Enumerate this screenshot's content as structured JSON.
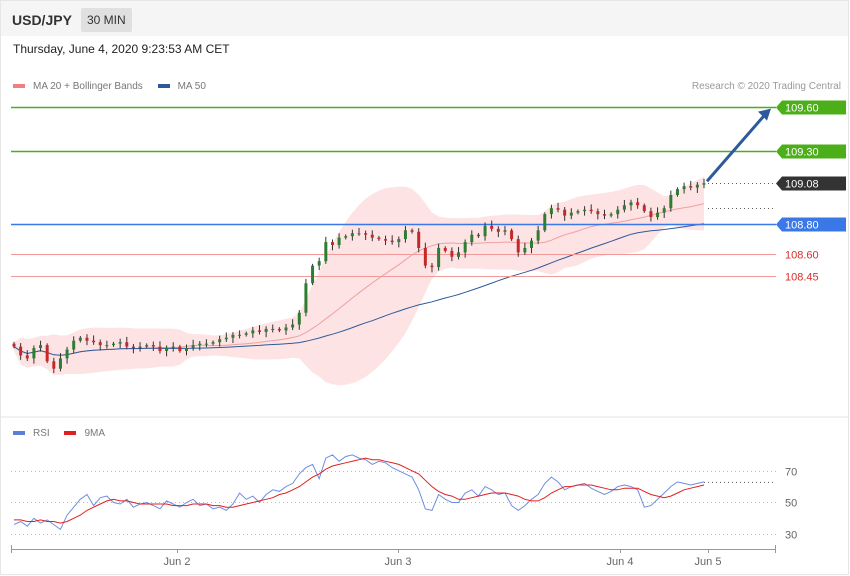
{
  "header": {
    "pair": "USD/JPY",
    "timeframe": "30 MIN",
    "datetime": "Thursday, June 4, 2020 9:23:53 AM CET",
    "credit": "Research © 2020 Trading Central"
  },
  "legend_main": [
    {
      "label": "MA 20 + Bollinger Bands",
      "color": "#f08080"
    },
    {
      "label": "MA 50",
      "color": "#2e5a9c"
    }
  ],
  "legend_rsi": [
    {
      "label": "RSI",
      "color": "#5b7fd6"
    },
    {
      "label": "9MA",
      "color": "#e02020"
    }
  ],
  "colors": {
    "up": "#2e7d32",
    "down": "#c62828",
    "resistance": "#4caf1a",
    "pivot": "#3b78e7",
    "support": "#f29a9a",
    "support_text": "#d9302b",
    "current": "#333333",
    "band_fill": "#fde0e0",
    "ma20": "#f0a0a0",
    "ma50": "#2e5a9c",
    "arrow": "#2e5a9c"
  },
  "chart_data": [
    {
      "type": "candlestick",
      "title": "USD/JPY",
      "xlabel": "",
      "ylabel": "",
      "x_ticks": [
        "Jun 2",
        "Jun 3",
        "Jun 4",
        "Jun 5"
      ],
      "ylim": [
        107.58,
        109.72
      ],
      "levels": [
        {
          "label": "109.60",
          "value": 109.6,
          "kind": "resistance"
        },
        {
          "label": "109.30",
          "value": 109.3,
          "kind": "resistance"
        },
        {
          "label": "109.08",
          "value": 109.08,
          "kind": "current"
        },
        {
          "label": "108.80",
          "value": 108.8,
          "kind": "pivot"
        },
        {
          "label": "108.60",
          "value": 108.6,
          "kind": "support"
        },
        {
          "label": "108.45",
          "value": 108.45,
          "kind": "support"
        }
      ],
      "close": [
        107.97,
        107.91,
        107.89,
        107.96,
        107.98,
        107.87,
        107.82,
        107.89,
        107.95,
        108.01,
        108.03,
        108.01,
        108.0,
        107.98,
        107.98,
        107.99,
        108.0,
        107.97,
        107.96,
        107.97,
        107.98,
        107.97,
        107.94,
        107.96,
        107.97,
        107.94,
        107.96,
        107.98,
        107.99,
        107.99,
        108.0,
        108.02,
        108.03,
        108.05,
        108.05,
        108.06,
        108.08,
        108.07,
        108.09,
        108.09,
        108.08,
        108.1,
        108.12,
        108.2,
        108.4,
        108.52,
        108.55,
        108.68,
        108.66,
        108.71,
        108.72,
        108.74,
        108.74,
        108.73,
        108.71,
        108.7,
        108.69,
        108.68,
        108.7,
        108.76,
        108.75,
        108.64,
        108.52,
        108.51,
        108.64,
        108.62,
        108.58,
        108.61,
        108.68,
        108.73,
        108.72,
        108.79,
        108.77,
        108.75,
        108.76,
        108.7,
        108.61,
        108.64,
        108.69,
        108.76,
        108.87,
        108.91,
        108.9,
        108.86,
        108.88,
        108.89,
        108.9,
        108.89,
        108.87,
        108.86,
        108.87,
        108.9,
        108.93,
        108.95,
        108.93,
        108.89,
        108.85,
        108.88,
        108.91,
        109.0,
        109.04,
        109.06,
        109.05,
        109.07,
        109.08
      ]
    },
    {
      "type": "line",
      "title": "RSI",
      "xlabel": "",
      "ylabel": "",
      "y_ticks": [
        30,
        50,
        70
      ],
      "ylim": [
        20,
        85
      ],
      "series": [
        {
          "name": "RSI",
          "values": [
            36,
            38,
            35,
            40,
            37,
            39,
            36,
            33,
            42,
            47,
            52,
            55,
            48,
            53,
            54,
            50,
            49,
            52,
            47,
            49,
            50,
            48,
            46,
            51,
            49,
            47,
            50,
            52,
            48,
            49,
            46,
            47,
            45,
            49,
            56,
            52,
            54,
            50,
            55,
            58,
            57,
            60,
            62,
            68,
            72,
            74,
            65,
            78,
            80,
            76,
            79,
            80,
            78,
            77,
            74,
            76,
            75,
            72,
            70,
            68,
            66,
            58,
            46,
            45,
            55,
            52,
            50,
            50,
            56,
            58,
            54,
            60,
            58,
            55,
            56,
            48,
            45,
            48,
            52,
            55,
            62,
            66,
            63,
            58,
            60,
            61,
            62,
            59,
            57,
            55,
            57,
            60,
            61,
            60,
            58,
            47,
            48,
            52,
            56,
            60,
            63,
            62,
            61,
            62,
            63
          ]
        },
        {
          "name": "9MA",
          "values": [
            39,
            39,
            38,
            38,
            39,
            38,
            38,
            37,
            38,
            40,
            42,
            45,
            47,
            49,
            51,
            52,
            51,
            51,
            50,
            49,
            49,
            49,
            49,
            49,
            48,
            48,
            48,
            49,
            49,
            49,
            48,
            48,
            47,
            47,
            48,
            49,
            50,
            51,
            52,
            53,
            55,
            56,
            58,
            60,
            63,
            66,
            68,
            71,
            73,
            74,
            75,
            76,
            77,
            78,
            77,
            77,
            76,
            75,
            74,
            72,
            70,
            68,
            64,
            60,
            57,
            55,
            54,
            52,
            52,
            53,
            54,
            55,
            56,
            56,
            56,
            55,
            54,
            52,
            51,
            51,
            53,
            56,
            58,
            60,
            60,
            61,
            61,
            61,
            60,
            59,
            58,
            58,
            59,
            59,
            59,
            57,
            55,
            54,
            53,
            54,
            56,
            58,
            59,
            60,
            61
          ]
        }
      ]
    }
  ]
}
